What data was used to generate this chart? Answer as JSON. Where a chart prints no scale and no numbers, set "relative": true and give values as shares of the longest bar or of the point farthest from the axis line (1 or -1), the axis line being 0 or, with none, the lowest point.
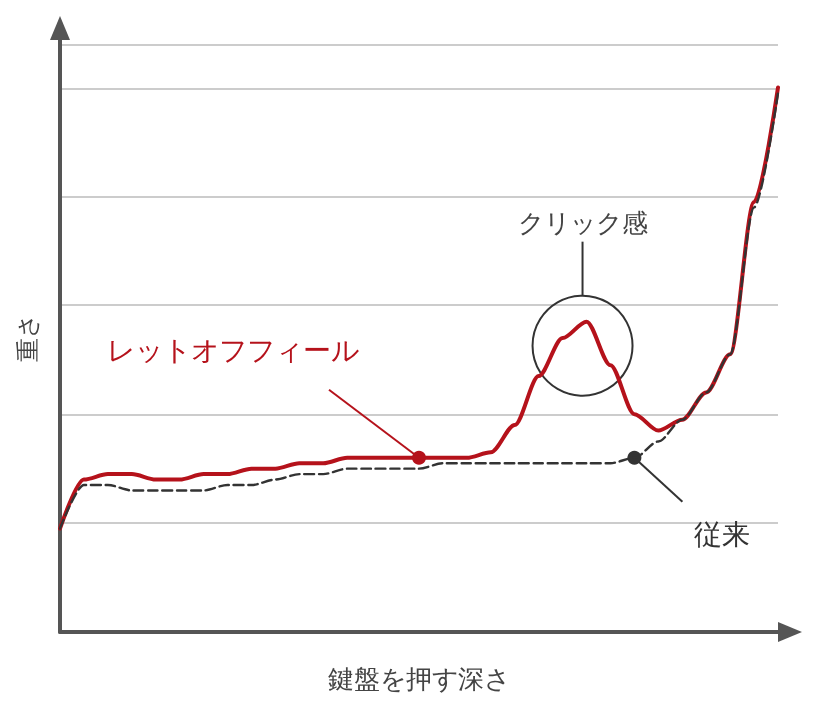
{
  "chart_data": {
    "type": "line",
    "relative": true,
    "xlabel": "鍵盤を押す深さ",
    "ylabel": "重さ",
    "grid": "y",
    "legend": false,
    "marker": "none",
    "categories": [
      null,
      null,
      null,
      null,
      null,
      null,
      null,
      null,
      null,
      null,
      null,
      null,
      null,
      null,
      null,
      null,
      null,
      null,
      null,
      null,
      null,
      null,
      null,
      null,
      null,
      null,
      null,
      null,
      null,
      null,
      null
    ],
    "series": [
      {
        "name": "レットオフフィール",
        "color": "#b5121b",
        "line_style": "solid",
        "values": [
          0.19,
          0.28,
          0.29,
          0.29,
          0.28,
          0.28,
          0.29,
          0.29,
          0.3,
          0.3,
          0.31,
          0.31,
          0.32,
          0.32,
          0.32,
          0.32,
          0.32,
          0.32,
          0.33,
          0.38,
          0.47,
          0.54,
          0.57,
          0.49,
          0.4,
          0.37,
          0.39,
          0.44,
          0.51,
          0.79,
          1
        ]
      },
      {
        "name": "従来",
        "color": "#333333",
        "line_style": "dashed",
        "values": [
          0.19,
          0.27,
          0.27,
          0.26,
          0.26,
          0.26,
          0.26,
          0.27,
          0.27,
          0.28,
          0.29,
          0.29,
          0.3,
          0.3,
          0.3,
          0.3,
          0.31,
          0.31,
          0.31,
          0.31,
          0.31,
          0.31,
          0.31,
          0.31,
          0.32,
          0.35,
          0.39,
          0.44,
          0.51,
          0.78,
          0.99
        ]
      }
    ],
    "annotations": [
      "クリック感"
    ]
  }
}
